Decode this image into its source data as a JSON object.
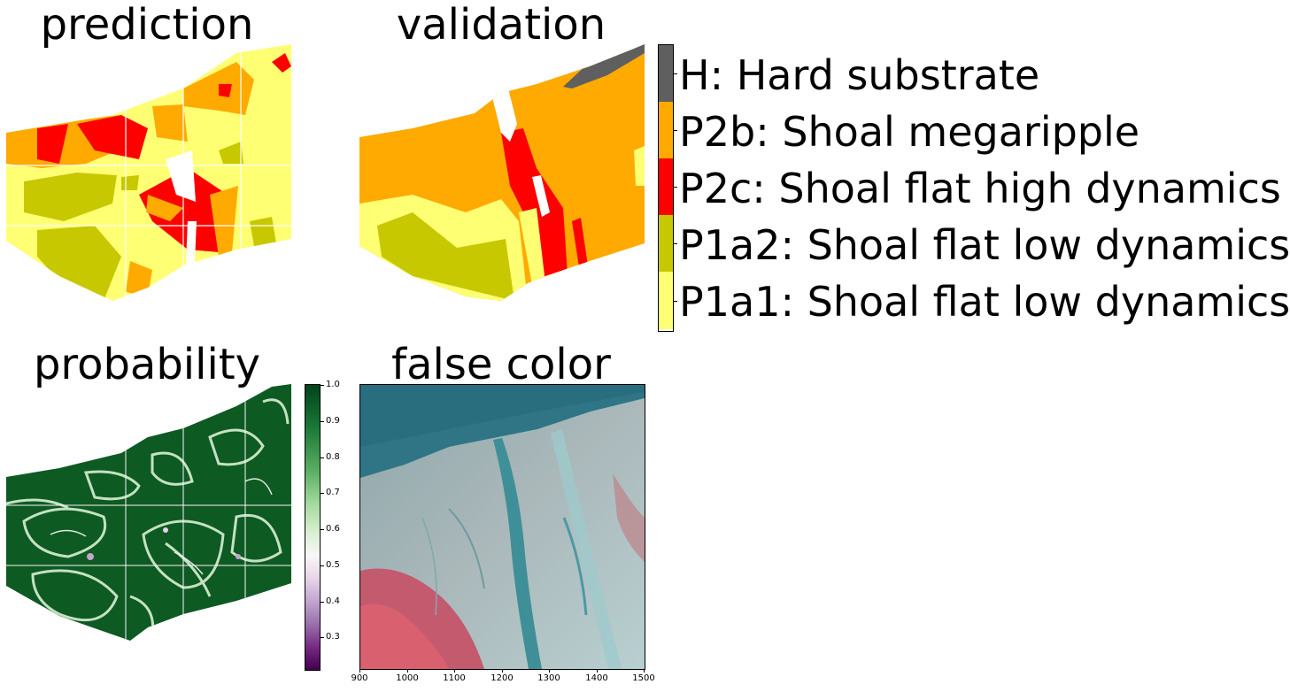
{
  "titles": {
    "prediction": "prediction",
    "validation": "validation",
    "probability": "probability",
    "false_color": "false color"
  },
  "legend": {
    "classes": [
      {
        "label": "H: Hard substrate",
        "color": "#5f5f5f"
      },
      {
        "label": "P2b: Shoal megaripple",
        "color": "#ffaa00"
      },
      {
        "label": "P2c: Shoal flat high dynamics",
        "color": "#ff0000"
      },
      {
        "label": "P1a2: Shoal flat low dynamics",
        "color": "#c8c800"
      },
      {
        "label": "P1a1: Shoal flat low dynamics",
        "color": "#ffff73"
      }
    ]
  },
  "colorbar": {
    "ticks": [
      "1.0",
      "0.9",
      "0.8",
      "0.7",
      "0.6",
      "0.5",
      "0.4",
      "0.3"
    ],
    "min": 0.21,
    "max": 1.0
  },
  "chart_data": [
    {
      "type": "heatmap",
      "title": "prediction",
      "categorical": true
    },
    {
      "type": "heatmap",
      "title": "validation",
      "categorical": true
    },
    {
      "type": "heatmap",
      "title": "probability",
      "colormap": "PRGn",
      "range": [
        0.21,
        1.0
      ],
      "ticks": [
        1.0,
        0.9,
        0.8,
        0.7,
        0.6,
        0.5,
        0.4,
        0.3
      ]
    },
    {
      "type": "heatmap",
      "title": "false color",
      "x_ticks": [
        900,
        1000,
        1100,
        1200,
        1300,
        1400,
        1500
      ],
      "xlim": [
        900,
        1500
      ]
    }
  ]
}
